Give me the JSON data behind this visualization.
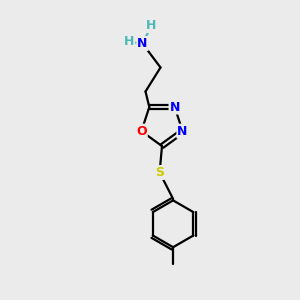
{
  "bg_color": "#ebebeb",
  "atom_colors": {
    "C": "#000000",
    "H": "#4db8b8",
    "N": "#0000ff",
    "O": "#ff0000",
    "S": "#cccc00"
  },
  "bond_color": "#000000",
  "bond_width": 1.6,
  "figsize": [
    3.0,
    3.0
  ],
  "dpi": 100,
  "xlim": [
    0,
    10
  ],
  "ylim": [
    0,
    10
  ]
}
